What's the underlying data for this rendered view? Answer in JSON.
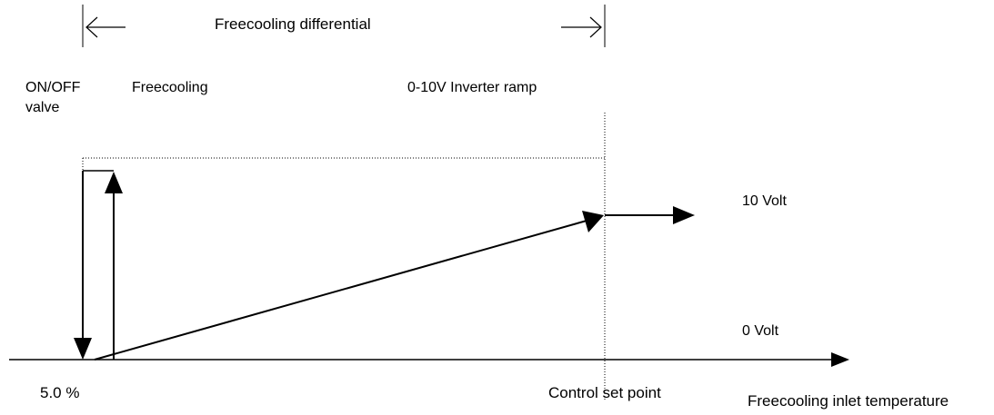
{
  "labels": {
    "freecooling_differential": "Freecooling differential",
    "on_off": "ON/OFF",
    "valve": "valve",
    "freecooling": "Freecooling",
    "inverter_ramp": "0-10V Inverter ramp",
    "ten_volt": "10 Volt",
    "zero_volt": "0 Volt",
    "percent": "5.0 %",
    "control_set_point": "Control set point",
    "x_axis": "Freecooling inlet temperature"
  },
  "colors": {
    "line": "#000000",
    "background": "#ffffff"
  }
}
